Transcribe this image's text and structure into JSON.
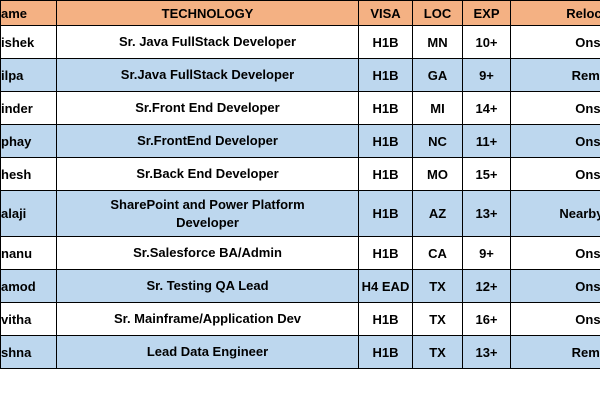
{
  "table": {
    "header": [
      "ame",
      "TECHNOLOGY",
      "VISA",
      "LOC",
      "EXP",
      "Relocatio"
    ],
    "rows": [
      [
        "ishek",
        "Sr. Java FullStack  Developer",
        "H1B",
        "MN",
        "10+",
        "Onsite"
      ],
      [
        "ilpa",
        "Sr.Java FullStack Developer",
        "H1B",
        "GA",
        "9+",
        "Remote"
      ],
      [
        "inder",
        "Sr.Front End  Developer",
        "H1B",
        "MI",
        "14+",
        "Onsite"
      ],
      [
        "phay",
        "Sr.FrontEnd Developer",
        "H1B",
        "NC",
        "11+",
        "Onsite"
      ],
      [
        "hesh",
        "Sr.Back End  Developer",
        "H1B",
        "MO",
        "15+",
        "Onsite"
      ],
      [
        "alaji",
        "SharePoint and Power Platform Developer",
        "H1B",
        "AZ",
        "13+",
        "Nearby/Ren"
      ],
      [
        "nanu",
        "Sr.Salesforce BA/Admin",
        "H1B",
        "CA",
        "9+",
        "Onsite"
      ],
      [
        "amod",
        "Sr. Testing QA Lead",
        "H4 EAD",
        "TX",
        "12+",
        "Onsite"
      ],
      [
        "vitha",
        "Sr. Mainframe/Application Dev",
        "H1B",
        "TX",
        "16+",
        "Onsite"
      ],
      [
        "shna",
        "Lead Data Engineer",
        "H1B",
        "TX",
        "13+",
        "Remote"
      ]
    ]
  }
}
